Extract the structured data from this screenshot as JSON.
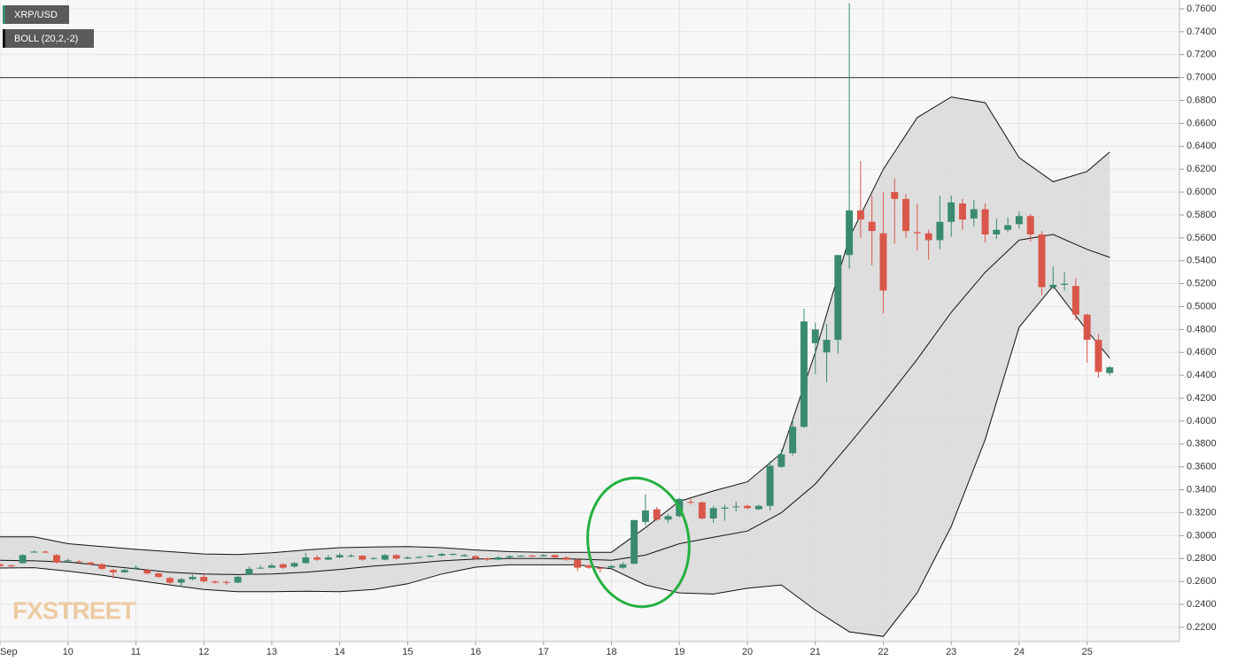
{
  "chart_data": {
    "type": "candlestick",
    "series_label": "XRP/USD",
    "indicator_label": "BOLL (20,2,-2)",
    "watermark": "FXSTREET",
    "up_color": "#3a8a6f",
    "down_color": "#d9574a",
    "band_color": "#d9d9d9",
    "line_color": "#111111",
    "grid": true,
    "hline": 0.7,
    "xlim": [
      9,
      26.36
    ],
    "ylim": [
      0.2076,
      0.7677
    ],
    "xticks": [
      {
        "value": 9,
        "label": "Sep"
      },
      10,
      11,
      12,
      13,
      14,
      15,
      16,
      17,
      18,
      19,
      20,
      21,
      22,
      23,
      24,
      25
    ],
    "yticks": [
      {
        "value": 0.22,
        "label": "0.2200"
      },
      {
        "value": 0.24,
        "label": "0.2400"
      },
      {
        "value": 0.26,
        "label": "0.2600"
      },
      {
        "value": 0.28,
        "label": "0.2800"
      },
      {
        "value": 0.3,
        "label": "0.3000"
      },
      {
        "value": 0.32,
        "label": "0.3200"
      },
      {
        "value": 0.34,
        "label": "0.3400"
      },
      {
        "value": 0.36,
        "label": "0.3600"
      },
      {
        "value": 0.38,
        "label": "0.3800"
      },
      {
        "value": 0.4,
        "label": "0.4000"
      },
      {
        "value": 0.42,
        "label": "0.4200"
      },
      {
        "value": 0.44,
        "label": "0.4400"
      },
      {
        "value": 0.46,
        "label": "0.4600"
      },
      {
        "value": 0.48,
        "label": "0.4800"
      },
      {
        "value": 0.5,
        "label": "0.5000"
      },
      {
        "value": 0.52,
        "label": "0.5200"
      },
      {
        "value": 0.54,
        "label": "0.5400"
      },
      {
        "value": 0.56,
        "label": "0.5600"
      },
      {
        "value": 0.58,
        "label": "0.5800"
      },
      {
        "value": 0.6,
        "label": "0.6000"
      },
      {
        "value": 0.62,
        "label": "0.6200"
      },
      {
        "value": 0.64,
        "label": "0.6400"
      },
      {
        "value": 0.66,
        "label": "0.6600"
      },
      {
        "value": 0.68,
        "label": "0.6800"
      },
      {
        "value": 0.7,
        "label": "0.7000"
      },
      {
        "value": 0.72,
        "label": "0.7200"
      },
      {
        "value": 0.74,
        "label": "0.7400"
      },
      {
        "value": 0.76,
        "label": "0.7600"
      }
    ],
    "x": [
      9,
      9.1667,
      9.3333,
      9.5,
      9.6667,
      9.8333,
      10,
      10.1667,
      10.3333,
      10.5,
      10.6667,
      10.8333,
      11,
      11.1667,
      11.3333,
      11.5,
      11.6667,
      11.8333,
      12,
      12.1667,
      12.3333,
      12.5,
      12.6667,
      12.8333,
      13,
      13.1667,
      13.3333,
      13.5,
      13.6667,
      13.8333,
      14,
      14.1667,
      14.3333,
      14.5,
      14.6667,
      14.8333,
      15,
      15.1667,
      15.3333,
      15.5,
      15.6667,
      15.8333,
      16,
      16.1667,
      16.3333,
      16.5,
      16.6667,
      16.8333,
      17,
      17.1667,
      17.3333,
      17.5,
      17.6667,
      17.8333,
      18,
      18.1667,
      18.3333,
      18.5,
      18.6667,
      18.8333,
      19,
      19.1667,
      19.3333,
      19.5,
      19.6667,
      19.8333,
      20,
      20.1667,
      20.3333,
      20.5,
      20.6667,
      20.8333,
      21,
      21.1667,
      21.3333,
      21.5,
      21.6667,
      21.8333,
      22,
      22.1667,
      22.3333,
      22.5,
      22.6667,
      22.8333,
      23,
      23.1667,
      23.3333,
      23.5,
      23.6667,
      23.8333,
      24,
      24.1667,
      24.3333,
      24.5,
      24.6667,
      24.8333,
      25,
      25.1667,
      25.3333
    ],
    "open": [
      0.275,
      0.274,
      0.276,
      0.2855,
      0.286,
      0.283,
      0.278,
      0.2775,
      0.2765,
      0.275,
      0.27,
      0.268,
      0.272,
      0.27,
      0.267,
      0.263,
      0.259,
      0.262,
      0.264,
      0.26,
      0.2595,
      0.259,
      0.266,
      0.2715,
      0.272,
      0.275,
      0.273,
      0.276,
      0.281,
      0.279,
      0.281,
      0.282,
      0.2825,
      0.28,
      0.279,
      0.283,
      0.28,
      0.281,
      0.2815,
      0.2825,
      0.2835,
      0.282,
      0.282,
      0.28,
      0.279,
      0.281,
      0.282,
      0.2825,
      0.282,
      0.283,
      0.281,
      0.279,
      0.274,
      0.272,
      0.272,
      0.272,
      0.2755,
      0.312,
      0.323,
      0.314,
      0.317,
      0.3295,
      0.329,
      0.315,
      0.3235,
      0.325,
      0.326,
      0.323,
      0.326,
      0.36,
      0.372,
      0.395,
      0.468,
      0.46,
      0.471,
      0.545,
      0.584,
      0.574,
      0.564,
      0.6,
      0.594,
      0.565,
      0.564,
      0.558,
      0.574,
      0.59,
      0.577,
      0.585,
      0.563,
      0.567,
      0.572,
      0.579,
      0.563,
      0.517,
      0.519,
      0.518,
      0.493,
      0.471,
      0.442
    ],
    "high": [
      0.276,
      0.275,
      0.284,
      0.287,
      0.287,
      0.284,
      0.28,
      0.2785,
      0.2775,
      0.276,
      0.271,
      0.271,
      0.274,
      0.271,
      0.268,
      0.264,
      0.263,
      0.266,
      0.266,
      0.261,
      0.261,
      0.265,
      0.273,
      0.274,
      0.276,
      0.276,
      0.277,
      0.285,
      0.283,
      0.283,
      0.285,
      0.284,
      0.283,
      0.281,
      0.284,
      0.284,
      0.282,
      0.282,
      0.283,
      0.285,
      0.2845,
      0.284,
      0.283,
      0.281,
      0.282,
      0.283,
      0.283,
      0.2835,
      0.284,
      0.2835,
      0.282,
      0.28,
      0.275,
      0.273,
      0.2745,
      0.277,
      0.314,
      0.336,
      0.325,
      0.319,
      0.333,
      0.332,
      0.33,
      0.326,
      0.327,
      0.33,
      0.327,
      0.327,
      0.365,
      0.375,
      0.401,
      0.498,
      0.486,
      0.485,
      0.545,
      0.765,
      0.627,
      0.597,
      0.6,
      0.612,
      0.598,
      0.59,
      0.567,
      0.597,
      0.597,
      0.594,
      0.593,
      0.59,
      0.577,
      0.578,
      0.583,
      0.581,
      0.566,
      0.535,
      0.53,
      0.525,
      0.494,
      0.476,
      0.448
    ],
    "low": [
      0.2725,
      0.2725,
      0.2755,
      0.285,
      0.2845,
      0.2755,
      0.277,
      0.276,
      0.2745,
      0.27,
      0.2625,
      0.2675,
      0.271,
      0.266,
      0.263,
      0.258,
      0.255,
      0.261,
      0.259,
      0.258,
      0.257,
      0.2585,
      0.2655,
      0.271,
      0.2715,
      0.271,
      0.272,
      0.2755,
      0.278,
      0.2785,
      0.28,
      0.281,
      0.278,
      0.279,
      0.2785,
      0.279,
      0.2795,
      0.28,
      0.281,
      0.282,
      0.2825,
      0.2815,
      0.279,
      0.278,
      0.2785,
      0.2805,
      0.2815,
      0.2815,
      0.2815,
      0.28,
      0.278,
      0.269,
      0.271,
      0.268,
      0.2715,
      0.271,
      0.275,
      0.309,
      0.313,
      0.311,
      0.316,
      0.327,
      0.314,
      0.311,
      0.313,
      0.321,
      0.323,
      0.3225,
      0.322,
      0.359,
      0.37,
      0.394,
      0.441,
      0.434,
      0.459,
      0.533,
      0.56,
      0.536,
      0.494,
      0.555,
      0.56,
      0.549,
      0.541,
      0.55,
      0.561,
      0.567,
      0.57,
      0.556,
      0.559,
      0.565,
      0.568,
      0.557,
      0.51,
      0.515,
      0.514,
      0.488,
      0.451,
      0.438,
      0.44
    ],
    "close": [
      0.2735,
      0.2735,
      0.283,
      0.286,
      0.2855,
      0.2765,
      0.2785,
      0.277,
      0.275,
      0.271,
      0.268,
      0.27,
      0.272,
      0.267,
      0.264,
      0.259,
      0.262,
      0.264,
      0.26,
      0.259,
      0.259,
      0.264,
      0.271,
      0.272,
      0.274,
      0.272,
      0.276,
      0.281,
      0.279,
      0.281,
      0.283,
      0.2825,
      0.279,
      0.2805,
      0.283,
      0.28,
      0.281,
      0.2815,
      0.2825,
      0.284,
      0.284,
      0.283,
      0.28,
      0.279,
      0.281,
      0.282,
      0.2825,
      0.282,
      0.283,
      0.281,
      0.279,
      0.272,
      0.272,
      0.271,
      0.2735,
      0.275,
      0.3135,
      0.322,
      0.314,
      0.317,
      0.332,
      0.329,
      0.315,
      0.324,
      0.3245,
      0.3255,
      0.324,
      0.326,
      0.361,
      0.371,
      0.395,
      0.487,
      0.48,
      0.471,
      0.545,
      0.584,
      0.576,
      0.566,
      0.514,
      0.594,
      0.566,
      0.564,
      0.558,
      0.574,
      0.591,
      0.576,
      0.585,
      0.563,
      0.567,
      0.571,
      0.579,
      0.563,
      0.517,
      0.519,
      0.52,
      0.493,
      0.471,
      0.443,
      0.447
    ],
    "bands": {
      "x": [
        9,
        9.5,
        10,
        10.5,
        11,
        11.5,
        12,
        12.5,
        13,
        13.5,
        14,
        14.5,
        15,
        15.5,
        16,
        16.5,
        17,
        17.5,
        18,
        18.5,
        19,
        19.5,
        20,
        20.5,
        21,
        21.5,
        22,
        22.5,
        23,
        23.5,
        24,
        24.5,
        25,
        25.3333
      ],
      "upper": [
        0.299,
        0.299,
        0.293,
        0.2905,
        0.288,
        0.286,
        0.284,
        0.2835,
        0.285,
        0.2875,
        0.2895,
        0.29,
        0.2905,
        0.2895,
        0.2875,
        0.286,
        0.2855,
        0.2855,
        0.2855,
        0.307,
        0.33,
        0.339,
        0.347,
        0.372,
        0.46,
        0.56,
        0.62,
        0.665,
        0.683,
        0.678,
        0.63,
        0.609,
        0.618,
        0.635
      ],
      "middle": [
        0.2785,
        0.278,
        0.277,
        0.274,
        0.271,
        0.268,
        0.2665,
        0.266,
        0.2665,
        0.268,
        0.2705,
        0.2735,
        0.2755,
        0.278,
        0.2795,
        0.28,
        0.28,
        0.2795,
        0.2785,
        0.283,
        0.293,
        0.2985,
        0.304,
        0.32,
        0.345,
        0.38,
        0.416,
        0.454,
        0.495,
        0.53,
        0.558,
        0.563,
        0.55,
        0.543
      ],
      "lower": [
        0.2717,
        0.272,
        0.269,
        0.2655,
        0.261,
        0.257,
        0.253,
        0.251,
        0.251,
        0.2515,
        0.251,
        0.253,
        0.258,
        0.2665,
        0.2725,
        0.2745,
        0.2745,
        0.2745,
        0.271,
        0.257,
        0.25,
        0.249,
        0.254,
        0.257,
        0.235,
        0.216,
        0.212,
        0.25,
        0.308,
        0.384,
        0.482,
        0.518,
        0.479,
        0.455
      ]
    }
  }
}
